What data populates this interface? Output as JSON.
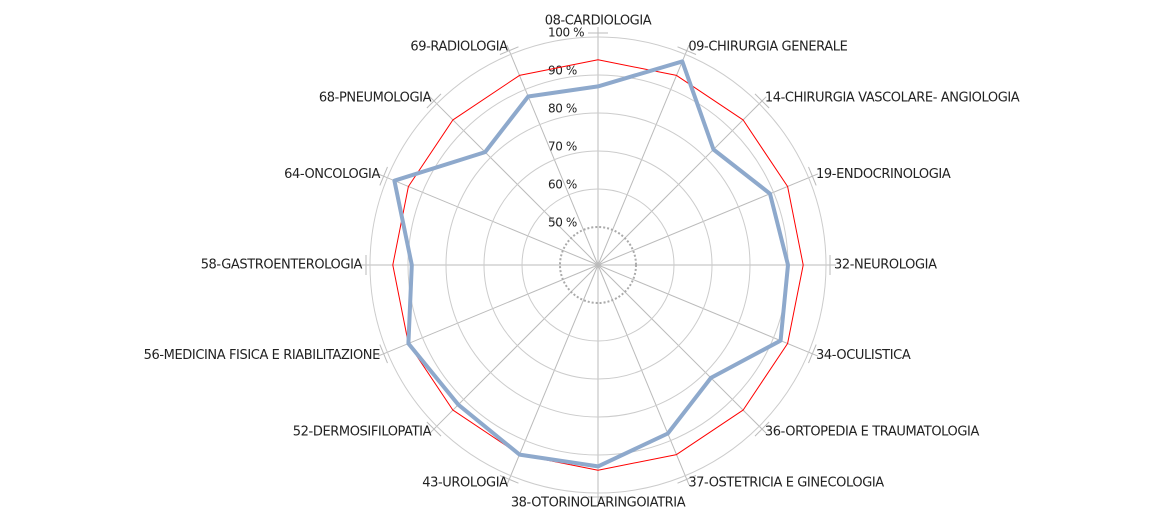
{
  "chart_data": {
    "type": "radar",
    "categories": [
      "08-CARDIOLOGIA",
      "09-CHIRURGIA GENERALE",
      "14-CHIRURGIA VASCOLARE- ANGIOLOGIA",
      "19-ENDOCRINOLOGIA",
      "32-NEUROLOGIA",
      "34-OCULISTICA",
      "36-ORTOPEDIA E TRAUMATOLOGIA",
      "37-OSTETRICIA E GINECOLOGIA",
      "38-OTORINOLARINGOIATRIA",
      "43-UROLOGIA",
      "52-DERMOSIFILOPATIA",
      "56-MEDICINA FISICA E RIABILITAZIONE",
      "58-GASTROENTEROLOGIA",
      "64-ONCOLOGIA",
      "68-PNEUMOLOGIA",
      "69-RADIOLOGIA"
    ],
    "series": [
      {
        "color": "#ff0000",
        "width": 1,
        "values": [
          94,
          94,
          94,
          94,
          94,
          94,
          94,
          94,
          94,
          94,
          94,
          94,
          94,
          94,
          94,
          94
        ]
      },
      {
        "color": "#8ea9cc",
        "width": 4,
        "values": [
          87,
          98,
          83,
          89,
          90,
          92,
          82,
          88,
          93,
          94,
          92,
          94,
          89,
          98,
          82,
          88
        ]
      }
    ],
    "ylim": [
      40,
      100
    ],
    "yticks": [
      {
        "value": 50,
        "label": "50 %"
      },
      {
        "value": 60,
        "label": "60 %"
      },
      {
        "value": 70,
        "label": "70 %"
      },
      {
        "value": 80,
        "label": "80 %"
      },
      {
        "value": 90,
        "label": "90 %"
      },
      {
        "value": 100,
        "label": "100 %"
      }
    ],
    "grid": true
  }
}
